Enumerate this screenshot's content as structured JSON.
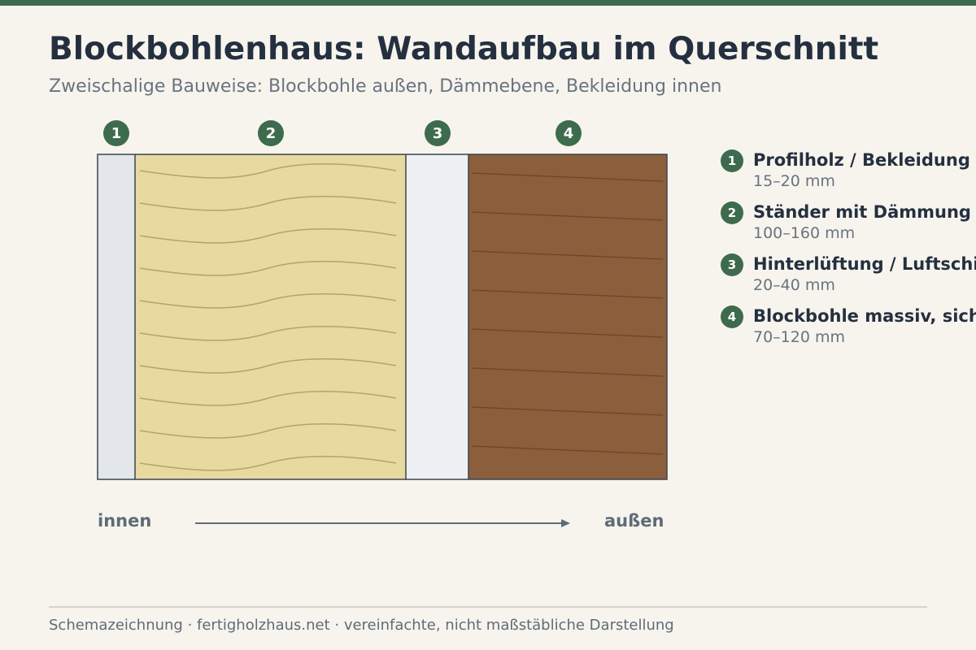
{
  "header": {
    "title": "Blockbohlenhaus: Wandaufbau im Querschnitt",
    "subtitle": "Zweischalige Bauweise: Blockbohle außen, Dämmebene, Bekleidung innen"
  },
  "layers": [
    {
      "number": "1",
      "label": "Profilholz / Bekleidung",
      "thickness": "15–20 mm",
      "color": "#e3e6ea"
    },
    {
      "number": "2",
      "label": "Ständer mit Dämmung",
      "thickness": "100–160 mm",
      "color": "#e8d9a0"
    },
    {
      "number": "3",
      "label": "Hinterlüftung / Luftschicht",
      "thickness": "20–40 mm",
      "color": "#eef1f4"
    },
    {
      "number": "4",
      "label": "Blockbohle massiv, sichtbar",
      "thickness": "70–120 mm",
      "color": "#8b5e3c"
    }
  ],
  "direction": {
    "inside": "innen",
    "outside": "außen"
  },
  "colors": {
    "accent": "#3e6b4e",
    "outline": "#3a4350",
    "insulation_wave": "#b3a46c",
    "wood_grain": "#6e4427",
    "arrow": "#5f6b78"
  },
  "footer": "Schemazeichnung · fertigholzhaus.net · vereinfachte, nicht maßstäbliche Darstellung"
}
